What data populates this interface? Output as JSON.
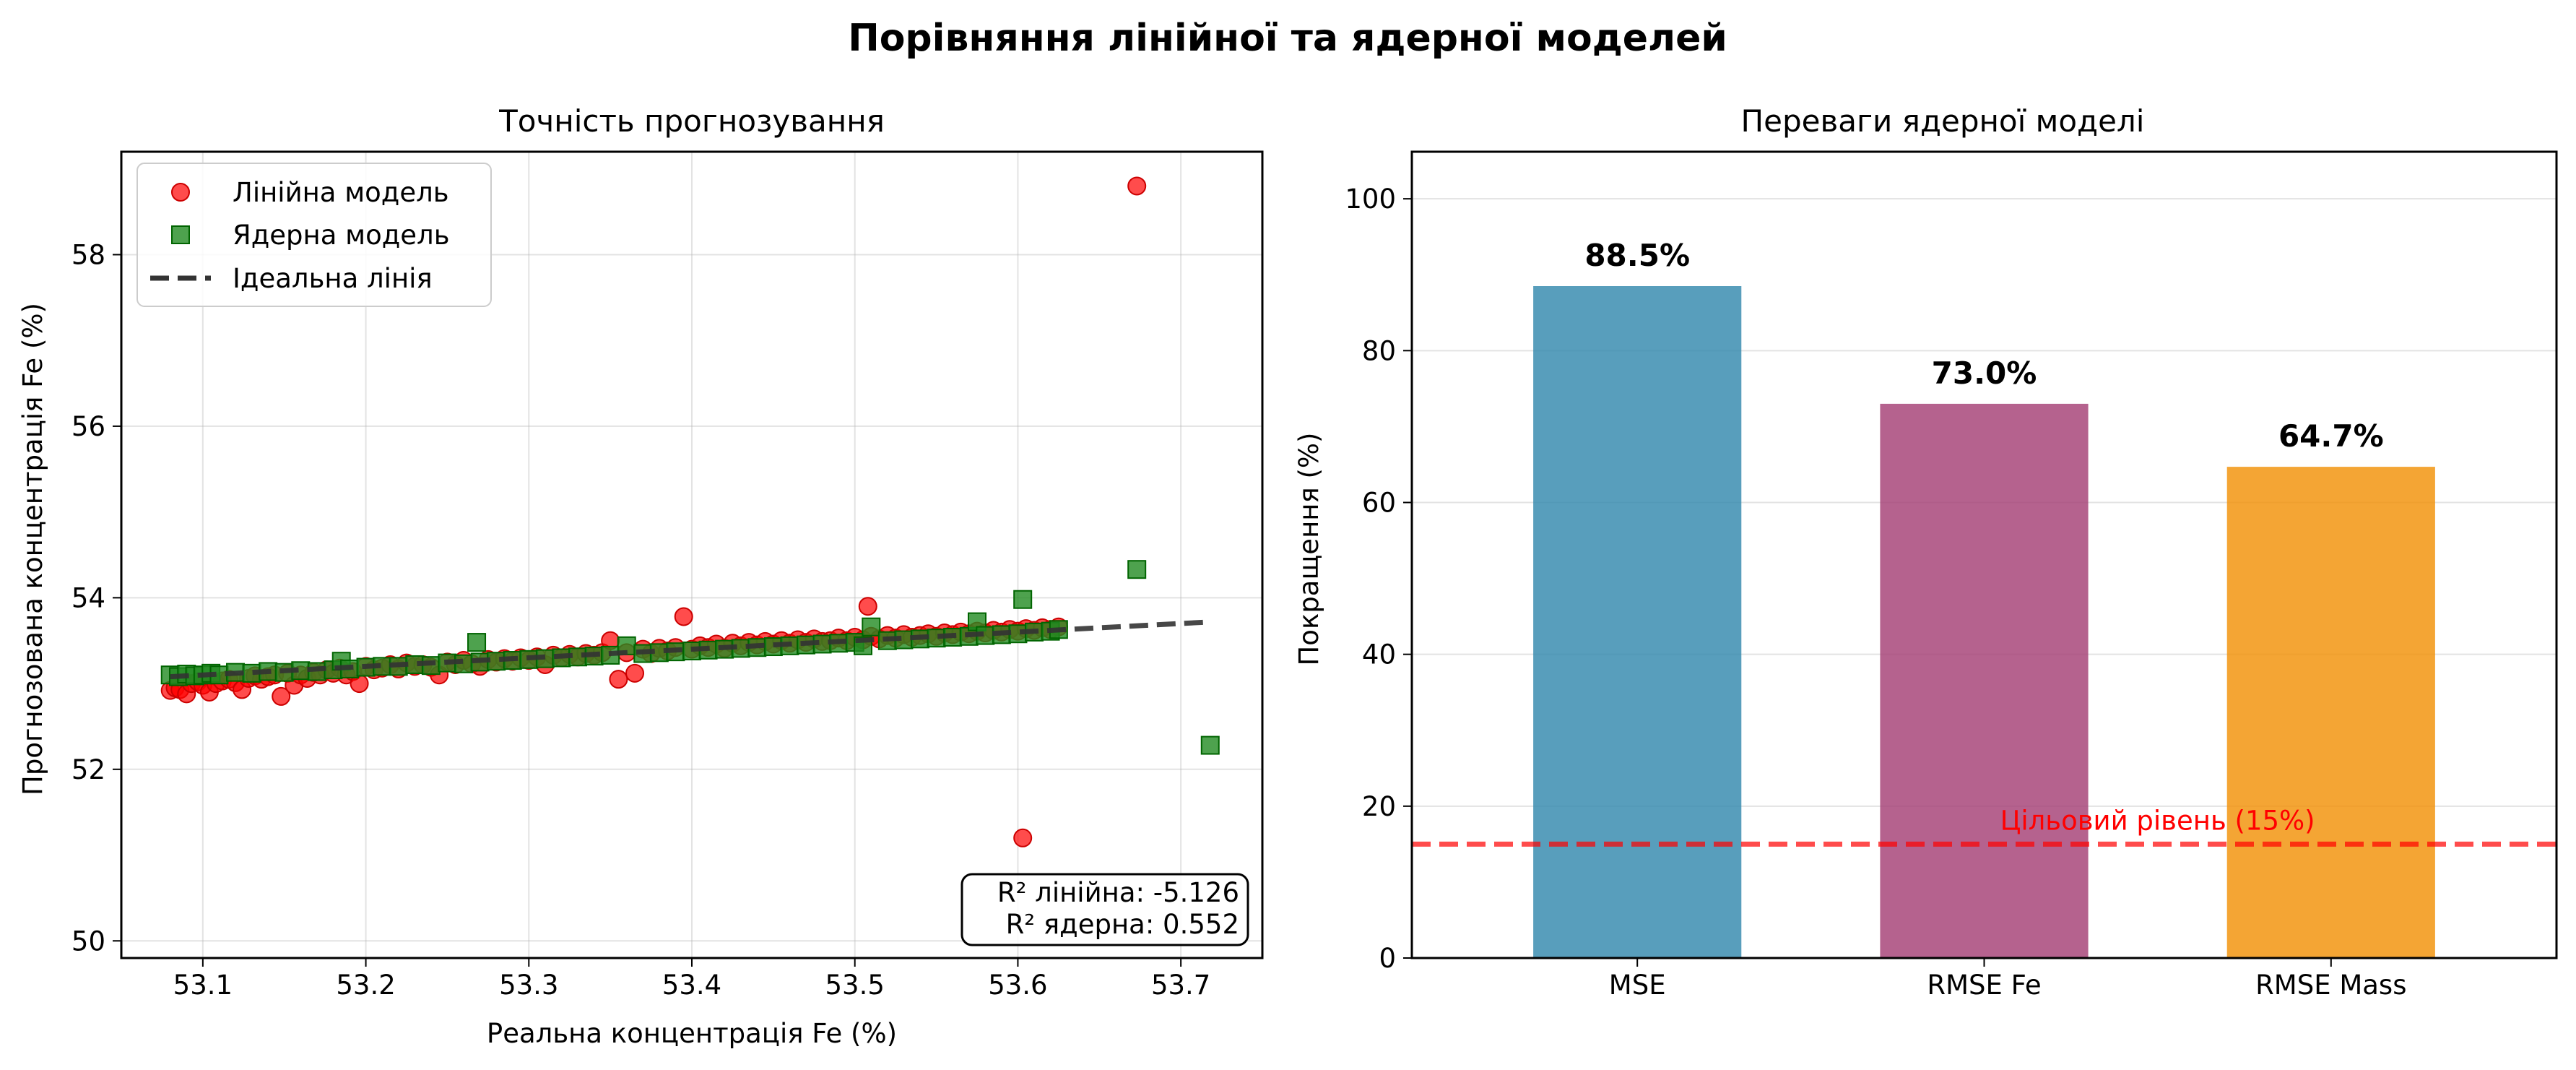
{
  "figure": {
    "suptitle": "Порівняння лінійної та ядерної моделей"
  },
  "chart_data": [
    {
      "type": "scatter",
      "title": "Точність прогнозування",
      "xlabel": "Реальна концентрація Fe (%)",
      "ylabel": "Прогнозована концентрація Fe (%)",
      "xlim": [
        53.05,
        53.75
      ],
      "ylim": [
        49.8,
        59.2
      ],
      "x_ticks": [
        "53.1",
        "53.2",
        "53.3",
        "53.4",
        "53.5",
        "53.6",
        "53.7"
      ],
      "y_ticks": [
        "50",
        "52",
        "54",
        "56",
        "58"
      ],
      "grid": true,
      "legend_position": "top-left",
      "series": [
        {
          "name": "Лінійна модель",
          "marker": "circle",
          "color": "#ff0000",
          "points": [
            [
              53.08,
              52.92
            ],
            [
              53.083,
              52.95
            ],
            [
              53.086,
              52.93
            ],
            [
              53.09,
              52.88
            ],
            [
              53.093,
              53.0
            ],
            [
              53.097,
              53.02
            ],
            [
              53.1,
              52.98
            ],
            [
              53.104,
              52.9
            ],
            [
              53.108,
              53.0
            ],
            [
              53.112,
              53.03
            ],
            [
              53.116,
              53.05
            ],
            [
              53.12,
              53.01
            ],
            [
              53.124,
              52.93
            ],
            [
              53.128,
              53.06
            ],
            [
              53.132,
              53.09
            ],
            [
              53.136,
              53.05
            ],
            [
              53.14,
              53.08
            ],
            [
              53.144,
              53.1
            ],
            [
              53.148,
              52.85
            ],
            [
              53.152,
              53.12
            ],
            [
              53.156,
              52.98
            ],
            [
              53.16,
              53.1
            ],
            [
              53.164,
              53.06
            ],
            [
              53.168,
              53.13
            ],
            [
              53.172,
              53.1
            ],
            [
              53.176,
              53.16
            ],
            [
              53.18,
              53.12
            ],
            [
              53.184,
              53.18
            ],
            [
              53.188,
              53.1
            ],
            [
              53.192,
              53.14
            ],
            [
              53.196,
              53.0
            ],
            [
              53.2,
              53.2
            ],
            [
              53.205,
              53.16
            ],
            [
              53.21,
              53.18
            ],
            [
              53.215,
              53.22
            ],
            [
              53.22,
              53.17
            ],
            [
              53.225,
              53.24
            ],
            [
              53.23,
              53.2
            ],
            [
              53.235,
              53.22
            ],
            [
              53.24,
              53.19
            ],
            [
              53.245,
              53.1
            ],
            [
              53.25,
              53.25
            ],
            [
              53.255,
              53.22
            ],
            [
              53.26,
              53.27
            ],
            [
              53.265,
              53.23
            ],
            [
              53.27,
              53.2
            ],
            [
              53.275,
              53.28
            ],
            [
              53.28,
              53.25
            ],
            [
              53.285,
              53.29
            ],
            [
              53.29,
              53.26
            ],
            [
              53.295,
              53.3
            ],
            [
              53.3,
              53.27
            ],
            [
              53.305,
              53.31
            ],
            [
              53.31,
              53.22
            ],
            [
              53.315,
              53.33
            ],
            [
              53.32,
              53.3
            ],
            [
              53.325,
              53.34
            ],
            [
              53.33,
              53.31
            ],
            [
              53.335,
              53.35
            ],
            [
              53.34,
              53.33
            ],
            [
              53.345,
              53.36
            ],
            [
              53.35,
              53.5
            ],
            [
              53.355,
              53.05
            ],
            [
              53.36,
              53.36
            ],
            [
              53.365,
              53.12
            ],
            [
              53.37,
              53.4
            ],
            [
              53.375,
              53.35
            ],
            [
              53.38,
              53.41
            ],
            [
              53.385,
              53.38
            ],
            [
              53.39,
              53.42
            ],
            [
              53.395,
              53.78
            ],
            [
              53.4,
              53.4
            ],
            [
              53.405,
              53.44
            ],
            [
              53.41,
              53.42
            ],
            [
              53.415,
              53.46
            ],
            [
              53.42,
              53.41
            ],
            [
              53.425,
              53.47
            ],
            [
              53.43,
              53.44
            ],
            [
              53.435,
              53.48
            ],
            [
              53.44,
              53.45
            ],
            [
              53.445,
              53.49
            ],
            [
              53.45,
              53.46
            ],
            [
              53.455,
              53.5
            ],
            [
              53.46,
              53.47
            ],
            [
              53.465,
              53.51
            ],
            [
              53.47,
              53.48
            ],
            [
              53.475,
              53.52
            ],
            [
              53.48,
              53.49
            ],
            [
              53.485,
              53.5
            ],
            [
              53.49,
              53.53
            ],
            [
              53.495,
              53.5
            ],
            [
              53.5,
              53.54
            ],
            [
              53.505,
              53.51
            ],
            [
              53.508,
              53.9
            ],
            [
              53.51,
              53.55
            ],
            [
              53.515,
              53.52
            ],
            [
              53.52,
              53.56
            ],
            [
              53.525,
              53.53
            ],
            [
              53.53,
              53.57
            ],
            [
              53.535,
              53.54
            ],
            [
              53.54,
              53.56
            ],
            [
              53.545,
              53.58
            ],
            [
              53.55,
              53.55
            ],
            [
              53.555,
              53.59
            ],
            [
              53.56,
              53.57
            ],
            [
              53.565,
              53.6
            ],
            [
              53.57,
              53.58
            ],
            [
              53.575,
              53.61
            ],
            [
              53.58,
              53.59
            ],
            [
              53.585,
              53.62
            ],
            [
              53.59,
              53.6
            ],
            [
              53.595,
              53.63
            ],
            [
              53.6,
              53.61
            ],
            [
              53.603,
              51.2
            ],
            [
              53.605,
              53.64
            ],
            [
              53.61,
              53.62
            ],
            [
              53.615,
              53.65
            ],
            [
              53.62,
              53.63
            ],
            [
              53.625,
              53.66
            ],
            [
              53.673,
              58.8
            ]
          ]
        },
        {
          "name": "Ядерна модель",
          "marker": "square",
          "color": "#228b22",
          "points": [
            [
              53.08,
              53.1
            ],
            [
              53.085,
              53.08
            ],
            [
              53.09,
              53.11
            ],
            [
              53.095,
              53.09
            ],
            [
              53.1,
              53.1
            ],
            [
              53.105,
              53.12
            ],
            [
              53.11,
              53.1
            ],
            [
              53.12,
              53.13
            ],
            [
              53.13,
              53.12
            ],
            [
              53.14,
              53.14
            ],
            [
              53.15,
              53.13
            ],
            [
              53.16,
              53.15
            ],
            [
              53.17,
              53.14
            ],
            [
              53.18,
              53.16
            ],
            [
              53.185,
              53.26
            ],
            [
              53.19,
              53.17
            ],
            [
              53.2,
              53.19
            ],
            [
              53.21,
              53.2
            ],
            [
              53.22,
              53.2
            ],
            [
              53.23,
              53.22
            ],
            [
              53.24,
              53.21
            ],
            [
              53.25,
              53.24
            ],
            [
              53.26,
              53.23
            ],
            [
              53.268,
              53.48
            ],
            [
              53.27,
              53.25
            ],
            [
              53.28,
              53.26
            ],
            [
              53.29,
              53.27
            ],
            [
              53.3,
              53.28
            ],
            [
              53.31,
              53.29
            ],
            [
              53.32,
              53.3
            ],
            [
              53.33,
              53.31
            ],
            [
              53.34,
              53.32
            ],
            [
              53.35,
              53.33
            ],
            [
              53.36,
              53.44
            ],
            [
              53.37,
              53.35
            ],
            [
              53.38,
              53.36
            ],
            [
              53.39,
              53.37
            ],
            [
              53.4,
              53.38
            ],
            [
              53.41,
              53.39
            ],
            [
              53.42,
              53.4
            ],
            [
              53.43,
              53.41
            ],
            [
              53.44,
              53.42
            ],
            [
              53.45,
              53.43
            ],
            [
              53.46,
              53.44
            ],
            [
              53.47,
              53.45
            ],
            [
              53.48,
              53.46
            ],
            [
              53.49,
              53.47
            ],
            [
              53.5,
              53.48
            ],
            [
              53.505,
              53.44
            ],
            [
              53.51,
              53.66
            ],
            [
              53.52,
              53.5
            ],
            [
              53.53,
              53.51
            ],
            [
              53.54,
              53.52
            ],
            [
              53.55,
              53.53
            ],
            [
              53.56,
              53.54
            ],
            [
              53.57,
              53.55
            ],
            [
              53.575,
              53.72
            ],
            [
              53.58,
              53.56
            ],
            [
              53.59,
              53.57
            ],
            [
              53.6,
              53.58
            ],
            [
              53.603,
              53.98
            ],
            [
              53.61,
              53.6
            ],
            [
              53.62,
              53.61
            ],
            [
              53.625,
              53.63
            ],
            [
              53.673,
              54.33
            ],
            [
              53.718,
              52.28
            ]
          ]
        },
        {
          "name": "Ідеальна лінія",
          "style": "dashed",
          "color": "#333333",
          "x": [
            53.08,
            53.718
          ],
          "y": [
            53.08,
            53.718
          ]
        }
      ],
      "annotation": {
        "lines": [
          "R² лінійна: -5.126",
          "R² ядерна: 0.552"
        ],
        "position": "bottom-right"
      }
    },
    {
      "type": "bar",
      "title": "Переваги ядерної моделі",
      "xlabel": "",
      "ylabel": "Покращення (%)",
      "ylim": [
        0,
        106.2
      ],
      "y_ticks": [
        "0",
        "20",
        "40",
        "60",
        "80",
        "100"
      ],
      "categories": [
        "MSE",
        "RMSE Fe",
        "RMSE Mass"
      ],
      "values": [
        88.5,
        73.0,
        64.7
      ],
      "value_labels": [
        "88.5%",
        "73.0%",
        "64.7%"
      ],
      "colors": [
        "#2e86ab",
        "#a23b72",
        "#f18f01"
      ],
      "grid": true,
      "reference_line": {
        "value": 15,
        "label": "Цільовий рівень (15%)",
        "color": "#ff0000",
        "style": "dashed"
      }
    }
  ]
}
